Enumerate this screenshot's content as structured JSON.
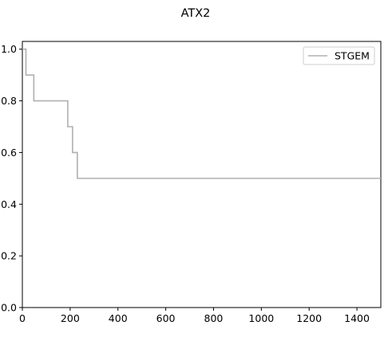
{
  "chart_data": {
    "type": "line",
    "title": "ATX2",
    "xlabel": "",
    "ylabel": "",
    "xlim": [
      0,
      1500
    ],
    "ylim": [
      0.0,
      1.03
    ],
    "x_ticks": [
      0,
      200,
      400,
      600,
      800,
      1000,
      1200,
      1400
    ],
    "y_ticks": [
      0.0,
      0.2,
      0.4,
      0.6,
      0.8,
      1.0
    ],
    "x_tick_labels": [
      "0",
      "200",
      "400",
      "600",
      "800",
      "1000",
      "1200",
      "1400"
    ],
    "y_tick_labels": [
      "0.0",
      "0.2",
      "0.4",
      "0.6",
      "0.8",
      "1.0"
    ],
    "grid": false,
    "legend_position": "top-right",
    "step": "post",
    "series": [
      {
        "name": "STGEM",
        "color": "#b0b0b0",
        "x": [
          0,
          15,
          48,
          190,
          210,
          230,
          1500
        ],
        "y": [
          1.0,
          0.9,
          0.8,
          0.7,
          0.6,
          0.5,
          0.5
        ]
      }
    ]
  }
}
